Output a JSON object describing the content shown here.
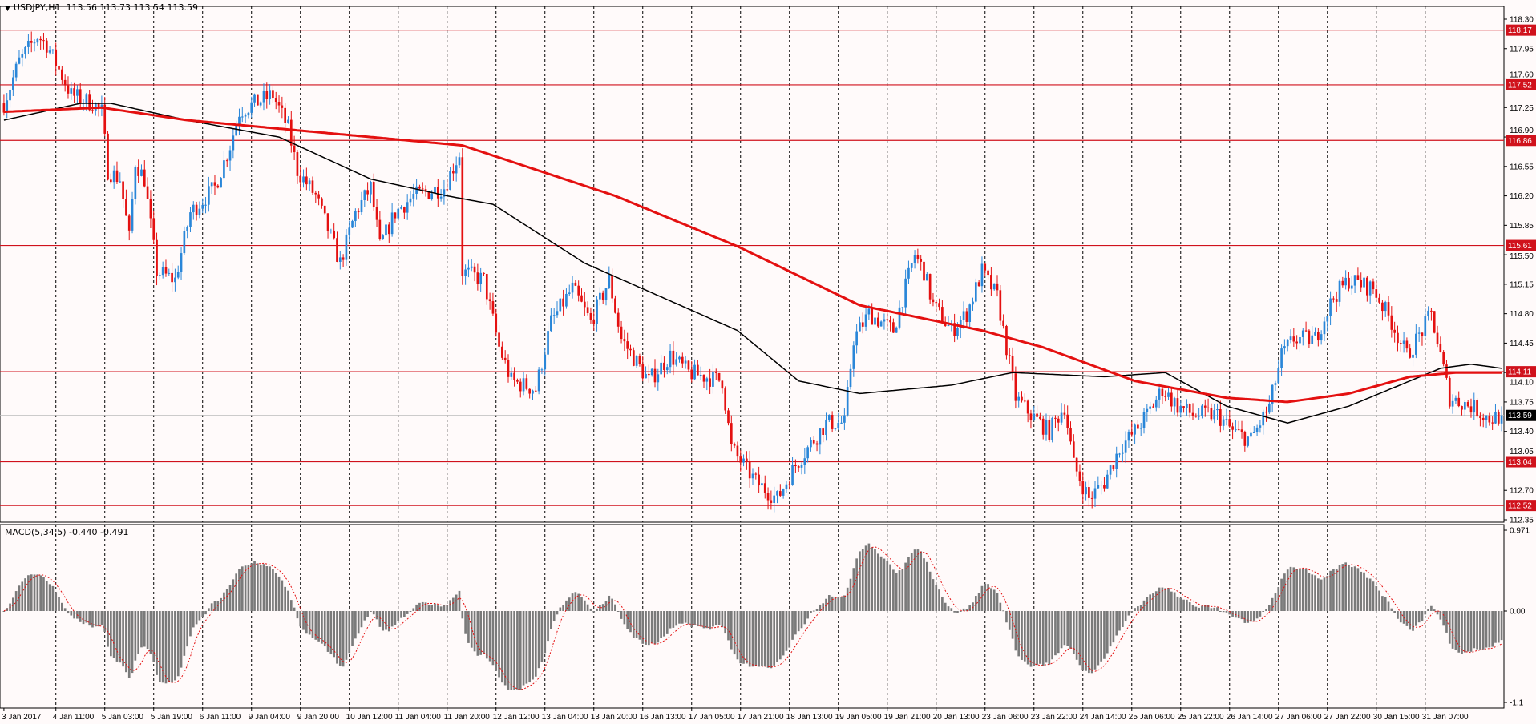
{
  "header": {
    "symbol": "USDJPY,H1",
    "ohlc": "113.56 113.73 113.54 113.59"
  },
  "macd_label": "MACD(5,34,5) -0.440 -0.491",
  "colors": {
    "bull": "#2a86d8",
    "bear": "#e41010",
    "level": "#d0121c",
    "ma_slow": "#e41010",
    "ma_fast": "#000000",
    "hist": "#7a7a7a",
    "signal": "#e41010",
    "bg": "#fffafa"
  },
  "chart_data": {
    "type": "candlestick",
    "bars": 491,
    "ylim": [
      112.35,
      118.3
    ],
    "y_ticks": [
      "118.30",
      "117.95",
      "117.60",
      "117.25",
      "116.90",
      "116.55",
      "116.20",
      "115.85",
      "115.50",
      "115.15",
      "114.80",
      "114.45",
      "114.10",
      "113.75",
      "113.40",
      "113.05",
      "112.70",
      "112.35"
    ],
    "price_levels": [
      "118.17",
      "117.52",
      "116.86",
      "115.61",
      "114.11",
      "113.04",
      "112.52"
    ],
    "current_price": "113.59",
    "x_ticks": [
      "3 Jan 2017",
      "4 Jan 11:00",
      "5 Jan 03:00",
      "5 Jan 19:00",
      "6 Jan 11:00",
      "9 Jan 04:00",
      "9 Jan 20:00",
      "10 Jan 12:00",
      "11 Jan 04:00",
      "11 Jan 20:00",
      "12 Jan 12:00",
      "13 Jan 04:00",
      "13 Jan 20:00",
      "16 Jan 13:00",
      "17 Jan 05:00",
      "17 Jan 21:00",
      "18 Jan 13:00",
      "19 Jan 05:00",
      "19 Jan 21:00",
      "20 Jan 13:00",
      "23 Jan 06:00",
      "23 Jan 22:00",
      "24 Jan 14:00",
      "25 Jan 06:00",
      "25 Jan 22:00",
      "26 Jan 14:00",
      "27 Jan 06:00",
      "27 Jan 22:00",
      "30 Jan 15:00",
      "31 Jan 07:00"
    ],
    "close_keypoints": [
      [
        0,
        117.3
      ],
      [
        5,
        117.8
      ],
      [
        11,
        118.1
      ],
      [
        14,
        118.0
      ],
      [
        22,
        117.4
      ],
      [
        29,
        117.3
      ],
      [
        32,
        117.2
      ],
      [
        34,
        116.5
      ],
      [
        38,
        116.4
      ],
      [
        41,
        115.7
      ],
      [
        43,
        116.6
      ],
      [
        46,
        116.4
      ],
      [
        50,
        115.3
      ],
      [
        56,
        115.2
      ],
      [
        61,
        116.0
      ],
      [
        69,
        116.3
      ],
      [
        74,
        116.8
      ],
      [
        77,
        117.2
      ],
      [
        82,
        117.3
      ],
      [
        88,
        117.4
      ],
      [
        93,
        117.0
      ],
      [
        96,
        116.5
      ],
      [
        102,
        116.2
      ],
      [
        110,
        115.4
      ],
      [
        115,
        116.0
      ],
      [
        120,
        116.3
      ],
      [
        123,
        115.6
      ],
      [
        128,
        116.0
      ],
      [
        134,
        116.2
      ],
      [
        144,
        116.3
      ],
      [
        149,
        116.7
      ],
      [
        150,
        115.3
      ],
      [
        157,
        115.2
      ],
      [
        162,
        114.4
      ],
      [
        166,
        114.0
      ],
      [
        174,
        113.9
      ],
      [
        179,
        114.7
      ],
      [
        186,
        115.1
      ],
      [
        192,
        114.7
      ],
      [
        198,
        115.2
      ],
      [
        202,
        114.5
      ],
      [
        211,
        114.0
      ],
      [
        218,
        114.3
      ],
      [
        224,
        114.1
      ],
      [
        235,
        114.0
      ],
      [
        238,
        113.2
      ],
      [
        246,
        112.8
      ],
      [
        253,
        112.6
      ],
      [
        259,
        113.0
      ],
      [
        269,
        113.5
      ],
      [
        275,
        113.5
      ],
      [
        278,
        114.5
      ],
      [
        283,
        114.8
      ],
      [
        291,
        114.6
      ],
      [
        298,
        115.5
      ],
      [
        301,
        115.3
      ],
      [
        304,
        114.9
      ],
      [
        310,
        114.6
      ],
      [
        315,
        114.8
      ],
      [
        320,
        115.3
      ],
      [
        325,
        115.0
      ],
      [
        328,
        114.4
      ],
      [
        331,
        113.8
      ],
      [
        336,
        113.6
      ],
      [
        342,
        113.4
      ],
      [
        347,
        113.7
      ],
      [
        350,
        113.0
      ],
      [
        355,
        112.6
      ],
      [
        360,
        112.8
      ],
      [
        365,
        113.2
      ],
      [
        370,
        113.4
      ],
      [
        374,
        113.6
      ],
      [
        379,
        113.9
      ],
      [
        384,
        113.7
      ],
      [
        389,
        113.6
      ],
      [
        397,
        113.6
      ],
      [
        402,
        113.4
      ],
      [
        408,
        113.3
      ],
      [
        414,
        113.7
      ],
      [
        418,
        114.3
      ],
      [
        422,
        114.5
      ],
      [
        429,
        114.5
      ],
      [
        435,
        115.0
      ],
      [
        440,
        115.2
      ],
      [
        448,
        115.1
      ],
      [
        454,
        114.7
      ],
      [
        459,
        114.3
      ],
      [
        464,
        114.6
      ],
      [
        467,
        114.8
      ],
      [
        470,
        114.3
      ],
      [
        473,
        113.8
      ],
      [
        480,
        113.7
      ],
      [
        486,
        113.55
      ],
      [
        490,
        113.59
      ]
    ],
    "ma_slow_keypoints": [
      [
        0,
        117.2
      ],
      [
        32,
        117.25
      ],
      [
        60,
        117.1
      ],
      [
        90,
        117.0
      ],
      [
        150,
        116.8
      ],
      [
        200,
        116.2
      ],
      [
        240,
        115.6
      ],
      [
        280,
        114.9
      ],
      [
        320,
        114.6
      ],
      [
        340,
        114.4
      ],
      [
        370,
        114.0
      ],
      [
        400,
        113.8
      ],
      [
        420,
        113.75
      ],
      [
        440,
        113.85
      ],
      [
        460,
        114.05
      ],
      [
        475,
        114.1
      ],
      [
        490,
        114.1
      ]
    ],
    "ma_fast_keypoints": [
      [
        0,
        117.1
      ],
      [
        25,
        117.3
      ],
      [
        35,
        117.3
      ],
      [
        60,
        117.1
      ],
      [
        90,
        116.9
      ],
      [
        120,
        116.4
      ],
      [
        145,
        116.2
      ],
      [
        160,
        116.1
      ],
      [
        190,
        115.4
      ],
      [
        240,
        114.6
      ],
      [
        260,
        114.0
      ],
      [
        280,
        113.85
      ],
      [
        310,
        113.95
      ],
      [
        330,
        114.1
      ],
      [
        360,
        114.05
      ],
      [
        380,
        114.1
      ],
      [
        400,
        113.7
      ],
      [
        420,
        113.5
      ],
      [
        440,
        113.7
      ],
      [
        470,
        114.15
      ],
      [
        480,
        114.2
      ],
      [
        490,
        114.15
      ]
    ],
    "macd": {
      "ylim": [
        -1.1,
        0.971
      ],
      "ticks": [
        "0.971",
        "0.00",
        "-1.1"
      ],
      "main": -0.44,
      "signal": -0.491
    }
  }
}
